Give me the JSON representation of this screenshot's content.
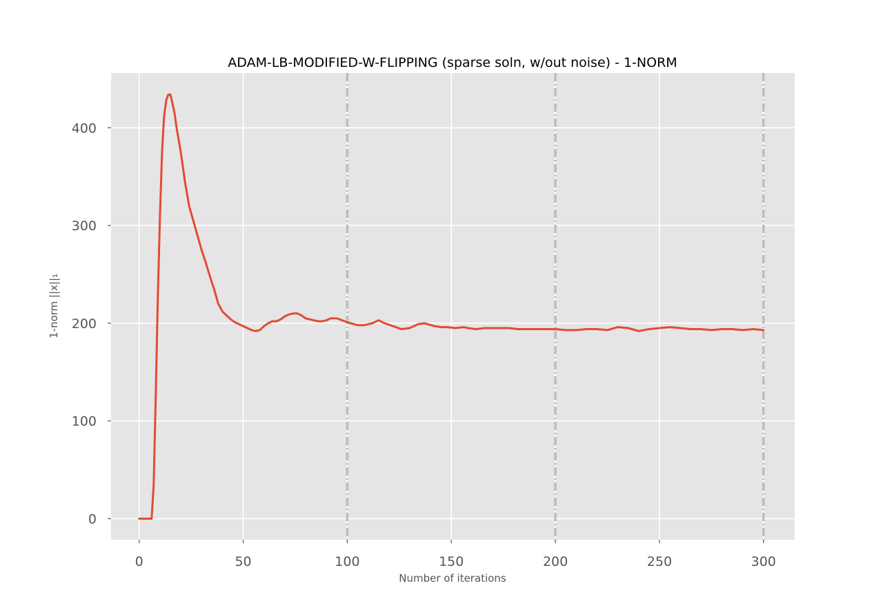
{
  "chart_data": {
    "type": "line",
    "title": "ADAM-LB-MODIFIED-W-FLIPPING (sparse soln, w/out noise) - 1-NORM",
    "xlabel": "Number of iterations",
    "ylabel": "1-norm ||x||₁",
    "xlim": [
      -13.5,
      315
    ],
    "ylim": [
      -21.5,
      456
    ],
    "xticks": [
      0,
      50,
      100,
      150,
      200,
      250,
      300
    ],
    "yticks": [
      0,
      100,
      200,
      300,
      400
    ],
    "xtick_labels": [
      "0",
      "50",
      "100",
      "150",
      "200",
      "250",
      "300"
    ],
    "ytick_labels": [
      "0",
      "100",
      "200",
      "300",
      "400"
    ],
    "grid": true,
    "background": "#e5e5e5",
    "vlines": [
      100,
      200,
      300
    ],
    "colors": {
      "line": "#e24a33",
      "vline": "#bdbdbd",
      "grid": "#ffffff"
    },
    "series": [
      {
        "x": [
          0,
          3,
          6,
          7,
          8,
          9,
          10,
          11,
          12,
          13,
          14,
          15,
          16,
          17,
          18,
          20,
          22,
          24,
          26,
          28,
          30,
          32,
          34,
          36,
          38,
          40,
          42,
          44,
          46,
          48,
          50,
          52,
          54,
          56,
          58,
          60,
          62,
          64,
          66,
          68,
          70,
          72,
          74,
          76,
          78,
          80,
          82,
          84,
          86,
          88,
          90,
          92,
          95,
          100,
          105,
          108,
          112,
          115,
          118,
          122,
          126,
          130,
          132,
          134,
          137,
          142,
          145,
          148,
          152,
          156,
          158,
          162,
          166,
          172,
          178,
          182,
          190,
          196,
          200,
          205,
          210,
          215,
          220,
          225,
          230,
          235,
          240,
          245,
          250,
          255,
          260,
          265,
          270,
          275,
          280,
          285,
          290,
          295,
          300
        ],
        "y": [
          0,
          0,
          0,
          35,
          130,
          230,
          310,
          375,
          412,
          428,
          434,
          434,
          425,
          415,
          400,
          375,
          345,
          320,
          305,
          290,
          275,
          262,
          248,
          235,
          220,
          212,
          208,
          204,
          201,
          199,
          197,
          195,
          193,
          192,
          193,
          197,
          200,
          202,
          202,
          204,
          207,
          209,
          210,
          210,
          208,
          205,
          204,
          203,
          202,
          202,
          203,
          205,
          205,
          201,
          198,
          198,
          200,
          203,
          200,
          197,
          194,
          195,
          197,
          199,
          200,
          197,
          196,
          196,
          195,
          196,
          195,
          194,
          195,
          195,
          195,
          194,
          194,
          194,
          194,
          193,
          193,
          194,
          194,
          193,
          196,
          195,
          192,
          194,
          195,
          196,
          195,
          194,
          194,
          193,
          194,
          194,
          193,
          194,
          193
        ]
      }
    ]
  }
}
